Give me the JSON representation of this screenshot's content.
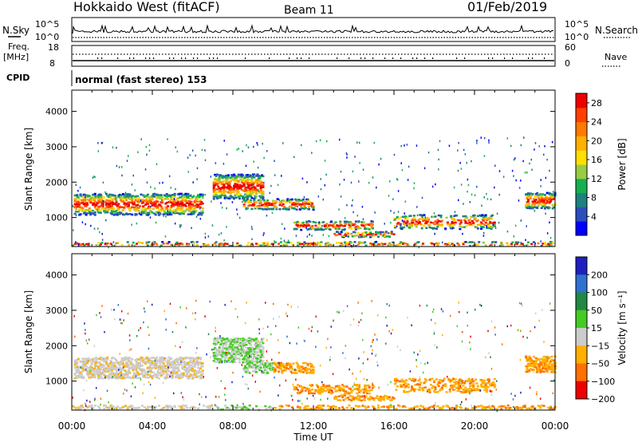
{
  "header": {
    "station": "Hokkaido West (fitACF)",
    "beam": "Beam 11",
    "date": "01/Feb/2019"
  },
  "sky_panel": {
    "left_label": "N.Sky",
    "right_label": "N.Search",
    "tick_top": "10^5",
    "tick_bottom": "10^0"
  },
  "freq_panel": {
    "label_line1": "Freq.",
    "label_line2": "[MHz]",
    "right_label": "Nave",
    "left_ticks": [
      "18",
      "8"
    ],
    "right_ticks": [
      "60",
      "0"
    ]
  },
  "cpid_panel": {
    "label": "CPID",
    "mode_text": "normal (fast stereo) 153"
  },
  "chart_data": [
    {
      "type": "heatmap",
      "name": "power",
      "ylabel": "Slant Range [km]",
      "xlabel": "Time UT",
      "xlim": [
        0,
        24
      ],
      "ylim": [
        180,
        4600
      ],
      "x_ticks": [
        "00:00",
        "04:00",
        "08:00",
        "12:00",
        "16:00",
        "20:00",
        "00:00"
      ],
      "y_ticks": [
        1000,
        2000,
        3000,
        4000
      ],
      "colorbar": {
        "label": "Power [dB]",
        "ticks": [
          4,
          8,
          12,
          16,
          20,
          24,
          28
        ],
        "range": [
          0,
          30
        ],
        "colors": [
          "#0000ff",
          "#2a4ebc",
          "#1f8080",
          "#16b050",
          "#99cc44",
          "#ffe000",
          "#ffb000",
          "#ff7a00",
          "#ff4000",
          "#ee0000"
        ]
      }
    },
    {
      "type": "heatmap",
      "name": "velocity",
      "ylabel": "Slant Range [km]",
      "xlabel": "Time UT",
      "xlim": [
        0,
        24
      ],
      "ylim": [
        180,
        4600
      ],
      "x_ticks": [
        "00:00",
        "04:00",
        "08:00",
        "12:00",
        "16:00",
        "20:00",
        "00:00"
      ],
      "y_ticks": [
        1000,
        2000,
        3000,
        4000
      ],
      "colorbar": {
        "label": "Velocity [m s⁻¹]",
        "ticks": [
          "200",
          "100",
          "50",
          "15",
          "−15",
          "−50",
          "−100",
          "−200"
        ],
        "colors": [
          "#2020c0",
          "#3070d0",
          "#228844",
          "#44cc22",
          "#cccccc",
          "#ffb000",
          "#ff7000",
          "#ee0000"
        ]
      }
    }
  ]
}
